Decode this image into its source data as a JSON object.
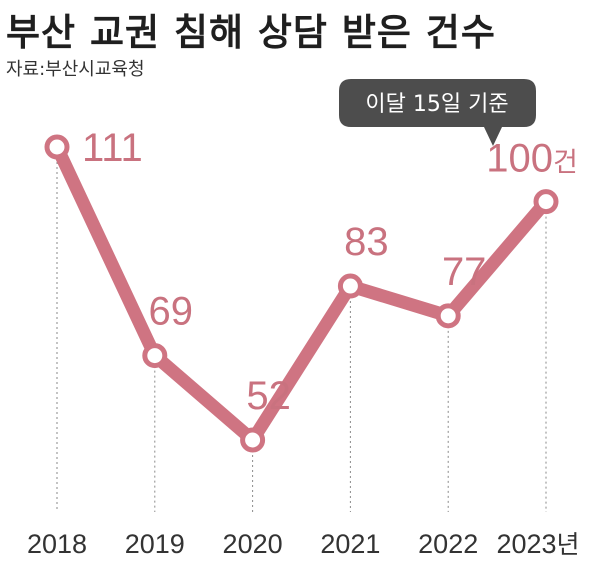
{
  "title": "부산 교권 침해 상담 받은 건수",
  "source": "자료:부산시교육청",
  "annotation": "이달 15일 기준",
  "colors": {
    "line": "#cf7482",
    "marker_fill": "#ffffff",
    "value_label": "#c9727f",
    "callout": "#4d4d4d"
  },
  "chart_data": {
    "type": "line",
    "categories": [
      "2018",
      "2019",
      "2020",
      "2021",
      "2022",
      "2023"
    ],
    "values": [
      111,
      69,
      52,
      83,
      77,
      100
    ],
    "x_unit": "년",
    "value_unit": "건",
    "grid": false
  }
}
